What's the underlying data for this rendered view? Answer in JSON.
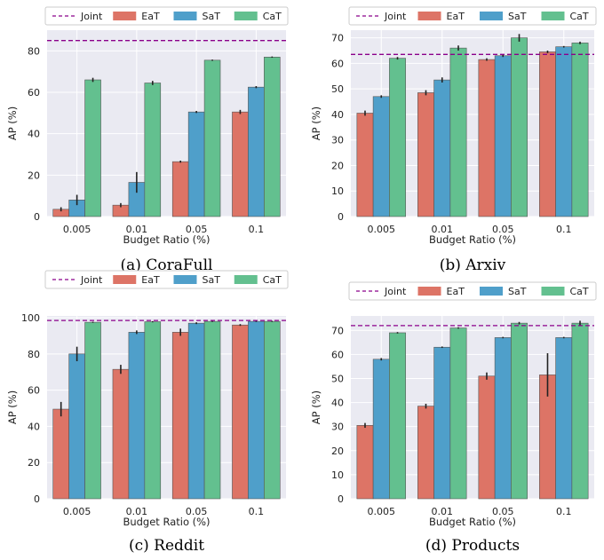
{
  "legend": {
    "joint": "Joint",
    "eat": "EaT",
    "sat": "SaT",
    "cat": "CaT"
  },
  "colors": {
    "eat": "#dd7466",
    "sat": "#4f9fca",
    "cat": "#63c08f",
    "joint": "#8b008b",
    "panel_bg": "#eaeaf2",
    "grid": "#ffffff"
  },
  "chart_data": [
    {
      "type": "bar",
      "caption": "(a) CoraFull",
      "categories": [
        "0.005",
        "0.01",
        "0.05",
        "0.1"
      ],
      "xlabel": "Budget Ratio (%)",
      "ylabel": "AP (%)",
      "ylim": [
        0,
        90
      ],
      "yticks": [
        0,
        20,
        40,
        60,
        80
      ],
      "joint": 85.0,
      "series": [
        {
          "name": "EaT",
          "values": [
            3.5,
            5.5,
            26.5,
            50.5
          ],
          "errors": [
            1.0,
            1.0,
            0.5,
            1.0
          ]
        },
        {
          "name": "SaT",
          "values": [
            8.0,
            16.5,
            50.5,
            62.5
          ],
          "errors": [
            2.5,
            5.0,
            0.5,
            0.5
          ]
        },
        {
          "name": "CaT",
          "values": [
            66.0,
            64.5,
            75.5,
            77.0
          ],
          "errors": [
            1.0,
            1.0,
            0.3,
            0.3
          ]
        }
      ],
      "legend_position": "top",
      "grid": true
    },
    {
      "type": "bar",
      "caption": "(b) Arxiv",
      "categories": [
        "0.005",
        "0.01",
        "0.05",
        "0.1"
      ],
      "xlabel": "Budget Ratio (%)",
      "ylabel": "AP (%)",
      "ylim": [
        0,
        73
      ],
      "yticks": [
        0,
        10,
        20,
        30,
        40,
        50,
        60,
        70
      ],
      "joint": 63.5,
      "series": [
        {
          "name": "EaT",
          "values": [
            40.5,
            48.5,
            61.5,
            64.5
          ],
          "errors": [
            1.0,
            1.0,
            0.5,
            0.5
          ]
        },
        {
          "name": "SaT",
          "values": [
            47.0,
            53.5,
            63.0,
            66.5
          ],
          "errors": [
            0.5,
            1.0,
            0.5,
            0.3
          ]
        },
        {
          "name": "CaT",
          "values": [
            62.0,
            66.0,
            70.0,
            68.0
          ],
          "errors": [
            0.5,
            1.0,
            1.5,
            0.5
          ]
        }
      ],
      "legend_position": "top",
      "grid": true
    },
    {
      "type": "bar",
      "caption": "(c) Reddit",
      "categories": [
        "0.005",
        "0.01",
        "0.05",
        "0.1"
      ],
      "xlabel": "Budget Ratio (%)",
      "ylabel": "AP (%)",
      "ylim": [
        0,
        101
      ],
      "yticks": [
        0,
        20,
        40,
        60,
        80,
        100
      ],
      "joint": 98.5,
      "series": [
        {
          "name": "EaT",
          "values": [
            49.5,
            71.5,
            92.0,
            96.0
          ],
          "errors": [
            4.0,
            2.5,
            2.0,
            0.5
          ]
        },
        {
          "name": "SaT",
          "values": [
            80.0,
            92.0,
            97.0,
            98.0
          ],
          "errors": [
            4.0,
            1.0,
            0.5,
            0.3
          ]
        },
        {
          "name": "CaT",
          "values": [
            97.5,
            97.8,
            98.0,
            98.0
          ],
          "errors": [
            0.3,
            0.3,
            0.3,
            0.3
          ]
        }
      ],
      "legend_position": "top",
      "grid": true
    },
    {
      "type": "bar",
      "caption": "(d) Products",
      "categories": [
        "0.005",
        "0.01",
        "0.05",
        "0.1"
      ],
      "xlabel": "Budget Ratio (%)",
      "ylabel": "AP (%)",
      "ylim": [
        0,
        76
      ],
      "yticks": [
        0,
        10,
        20,
        30,
        40,
        50,
        60,
        70
      ],
      "joint": 72.0,
      "series": [
        {
          "name": "EaT",
          "values": [
            30.5,
            38.5,
            51.0,
            51.5
          ],
          "errors": [
            1.0,
            1.0,
            1.5,
            9.0
          ]
        },
        {
          "name": "SaT",
          "values": [
            58.0,
            63.0,
            67.0,
            67.0
          ],
          "errors": [
            0.5,
            0.3,
            0.3,
            0.3
          ]
        },
        {
          "name": "CaT",
          "values": [
            69.0,
            71.0,
            73.0,
            73.0
          ],
          "errors": [
            0.3,
            0.3,
            0.5,
            1.0
          ]
        }
      ],
      "legend_position": "top",
      "grid": true
    }
  ]
}
